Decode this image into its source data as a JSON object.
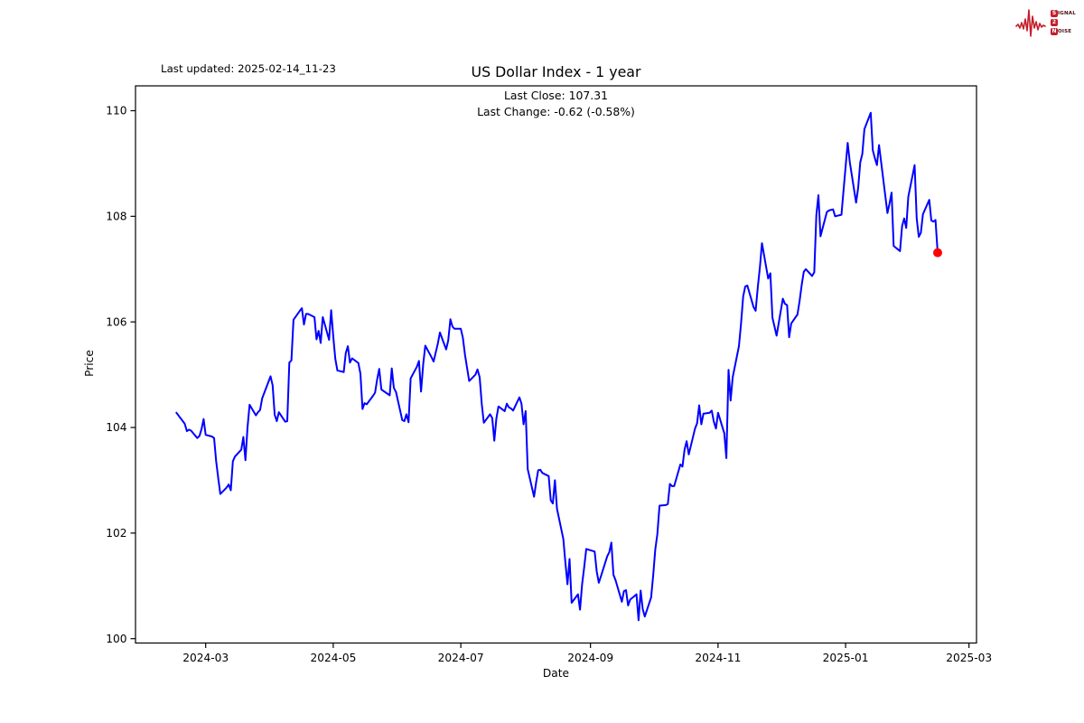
{
  "header": {
    "last_updated": "Last updated: 2025-02-14_11-23",
    "title": "US Dollar Index - 1 year",
    "subtitle_line1": "Last Close: 107.31",
    "subtitle_line2": "Last Change: -0.62 (-0.58%)"
  },
  "logo": {
    "word1_initial": "S",
    "word1_rest": "IGNAL",
    "word2_initial": "2",
    "word2_rest": "",
    "word3_initial": "N",
    "word3_rest": "OISE",
    "accent_color": "#c41f2b",
    "letter_color": "#4a0d10"
  },
  "chart_data": {
    "type": "line",
    "title": "US Dollar Index - 1 year",
    "xlabel": "Date",
    "ylabel": "Price",
    "last_close": 107.31,
    "last_change": "-0.62 (-0.58%)",
    "line_color": "#0000ff",
    "marker_color": "#ff0000",
    "axis_color": "#000000",
    "grid": false,
    "ylim": [
      99.87,
      110.44
    ],
    "y_ticks": [
      100,
      102,
      104,
      106,
      108,
      110
    ],
    "x_ticks": [
      {
        "date": "2024-03-01",
        "label": "2024-03"
      },
      {
        "date": "2024-05-01",
        "label": "2024-05"
      },
      {
        "date": "2024-07-01",
        "label": "2024-07"
      },
      {
        "date": "2024-09-01",
        "label": "2024-09"
      },
      {
        "date": "2024-11-01",
        "label": "2024-11"
      },
      {
        "date": "2025-01-01",
        "label": "2025-01"
      },
      {
        "date": "2025-03-01",
        "label": "2025-03"
      }
    ],
    "series": [
      {
        "name": "US Dollar Index",
        "points": [
          [
            "2024-02-16",
            104.28
          ],
          [
            "2024-02-20",
            104.07
          ],
          [
            "2024-02-21",
            103.93
          ],
          [
            "2024-02-22",
            103.96
          ],
          [
            "2024-02-23",
            103.94
          ],
          [
            "2024-02-26",
            103.8
          ],
          [
            "2024-02-27",
            103.84
          ],
          [
            "2024-02-28",
            103.97
          ],
          [
            "2024-02-29",
            104.16
          ],
          [
            "2024-03-01",
            103.86
          ],
          [
            "2024-03-04",
            103.83
          ],
          [
            "2024-03-05",
            103.8
          ],
          [
            "2024-03-06",
            103.36
          ],
          [
            "2024-03-07",
            103.04
          ],
          [
            "2024-03-08",
            102.74
          ],
          [
            "2024-03-11",
            102.86
          ],
          [
            "2024-03-12",
            102.92
          ],
          [
            "2024-03-13",
            102.81
          ],
          [
            "2024-03-14",
            103.36
          ],
          [
            "2024-03-15",
            103.45
          ],
          [
            "2024-03-18",
            103.58
          ],
          [
            "2024-03-19",
            103.82
          ],
          [
            "2024-03-20",
            103.38
          ],
          [
            "2024-03-21",
            104.0
          ],
          [
            "2024-03-22",
            104.43
          ],
          [
            "2024-03-25",
            104.23
          ],
          [
            "2024-03-26",
            104.29
          ],
          [
            "2024-03-27",
            104.33
          ],
          [
            "2024-03-28",
            104.55
          ],
          [
            "2024-04-01",
            104.97
          ],
          [
            "2024-04-02",
            104.8
          ],
          [
            "2024-04-03",
            104.24
          ],
          [
            "2024-04-04",
            104.12
          ],
          [
            "2024-04-05",
            104.29
          ],
          [
            "2024-04-08",
            104.11
          ],
          [
            "2024-04-09",
            104.12
          ],
          [
            "2024-04-10",
            105.23
          ],
          [
            "2024-04-11",
            105.27
          ],
          [
            "2024-04-12",
            106.04
          ],
          [
            "2024-04-15",
            106.21
          ],
          [
            "2024-04-16",
            106.26
          ],
          [
            "2024-04-17",
            105.95
          ],
          [
            "2024-04-18",
            106.15
          ],
          [
            "2024-04-19",
            106.15
          ],
          [
            "2024-04-22",
            106.09
          ],
          [
            "2024-04-23",
            105.67
          ],
          [
            "2024-04-24",
            105.83
          ],
          [
            "2024-04-25",
            105.6
          ],
          [
            "2024-04-26",
            106.09
          ],
          [
            "2024-04-29",
            105.66
          ],
          [
            "2024-04-30",
            106.22
          ],
          [
            "2024-05-01",
            105.73
          ],
          [
            "2024-05-02",
            105.3
          ],
          [
            "2024-05-03",
            105.08
          ],
          [
            "2024-05-06",
            105.05
          ],
          [
            "2024-05-07",
            105.41
          ],
          [
            "2024-05-08",
            105.54
          ],
          [
            "2024-05-09",
            105.23
          ],
          [
            "2024-05-10",
            105.31
          ],
          [
            "2024-05-13",
            105.22
          ],
          [
            "2024-05-14",
            105.02
          ],
          [
            "2024-05-15",
            104.35
          ],
          [
            "2024-05-16",
            104.46
          ],
          [
            "2024-05-17",
            104.44
          ],
          [
            "2024-05-20",
            104.6
          ],
          [
            "2024-05-21",
            104.66
          ],
          [
            "2024-05-22",
            104.91
          ],
          [
            "2024-05-23",
            105.11
          ],
          [
            "2024-05-24",
            104.72
          ],
          [
            "2024-05-28",
            104.61
          ],
          [
            "2024-05-29",
            105.12
          ],
          [
            "2024-05-30",
            104.75
          ],
          [
            "2024-05-31",
            104.67
          ],
          [
            "2024-06-03",
            104.14
          ],
          [
            "2024-06-04",
            104.12
          ],
          [
            "2024-06-05",
            104.25
          ],
          [
            "2024-06-06",
            104.1
          ],
          [
            "2024-06-07",
            104.93
          ],
          [
            "2024-06-10",
            105.15
          ],
          [
            "2024-06-11",
            105.26
          ],
          [
            "2024-06-12",
            104.68
          ],
          [
            "2024-06-13",
            105.2
          ],
          [
            "2024-06-14",
            105.55
          ],
          [
            "2024-06-17",
            105.33
          ],
          [
            "2024-06-18",
            105.25
          ],
          [
            "2024-06-20",
            105.59
          ],
          [
            "2024-06-21",
            105.8
          ],
          [
            "2024-06-24",
            105.48
          ],
          [
            "2024-06-25",
            105.65
          ],
          [
            "2024-06-26",
            106.05
          ],
          [
            "2024-06-27",
            105.91
          ],
          [
            "2024-06-28",
            105.87
          ],
          [
            "2024-07-01",
            105.87
          ],
          [
            "2024-07-02",
            105.7
          ],
          [
            "2024-07-03",
            105.37
          ],
          [
            "2024-07-05",
            104.88
          ],
          [
            "2024-07-08",
            105.0
          ],
          [
            "2024-07-09",
            105.1
          ],
          [
            "2024-07-10",
            104.95
          ],
          [
            "2024-07-11",
            104.45
          ],
          [
            "2024-07-12",
            104.09
          ],
          [
            "2024-07-15",
            104.25
          ],
          [
            "2024-07-16",
            104.18
          ],
          [
            "2024-07-17",
            103.75
          ],
          [
            "2024-07-18",
            104.17
          ],
          [
            "2024-07-19",
            104.4
          ],
          [
            "2024-07-22",
            104.31
          ],
          [
            "2024-07-23",
            104.45
          ],
          [
            "2024-07-24",
            104.38
          ],
          [
            "2024-07-25",
            104.36
          ],
          [
            "2024-07-26",
            104.32
          ],
          [
            "2024-07-29",
            104.57
          ],
          [
            "2024-07-30",
            104.45
          ],
          [
            "2024-07-31",
            104.06
          ],
          [
            "2024-08-01",
            104.31
          ],
          [
            "2024-08-02",
            103.21
          ],
          [
            "2024-08-05",
            102.69
          ],
          [
            "2024-08-06",
            102.96
          ],
          [
            "2024-08-07",
            103.19
          ],
          [
            "2024-08-08",
            103.2
          ],
          [
            "2024-08-09",
            103.14
          ],
          [
            "2024-08-12",
            103.08
          ],
          [
            "2024-08-13",
            102.62
          ],
          [
            "2024-08-14",
            102.56
          ],
          [
            "2024-08-15",
            103.0
          ],
          [
            "2024-08-16",
            102.46
          ],
          [
            "2024-08-19",
            101.89
          ],
          [
            "2024-08-20",
            101.44
          ],
          [
            "2024-08-21",
            101.03
          ],
          [
            "2024-08-22",
            101.51
          ],
          [
            "2024-08-23",
            100.68
          ],
          [
            "2024-08-26",
            100.84
          ],
          [
            "2024-08-27",
            100.55
          ],
          [
            "2024-08-28",
            101.03
          ],
          [
            "2024-08-29",
            101.35
          ],
          [
            "2024-08-30",
            101.7
          ],
          [
            "2024-09-03",
            101.65
          ],
          [
            "2024-09-04",
            101.27
          ],
          [
            "2024-09-05",
            101.06
          ],
          [
            "2024-09-06",
            101.18
          ],
          [
            "2024-09-09",
            101.56
          ],
          [
            "2024-09-10",
            101.64
          ],
          [
            "2024-09-11",
            101.82
          ],
          [
            "2024-09-12",
            101.21
          ],
          [
            "2024-09-13",
            101.11
          ],
          [
            "2024-09-16",
            100.7
          ],
          [
            "2024-09-17",
            100.9
          ],
          [
            "2024-09-18",
            100.92
          ],
          [
            "2024-09-19",
            100.63
          ],
          [
            "2024-09-20",
            100.74
          ],
          [
            "2024-09-23",
            100.84
          ],
          [
            "2024-09-24",
            100.35
          ],
          [
            "2024-09-25",
            100.91
          ],
          [
            "2024-09-26",
            100.56
          ],
          [
            "2024-09-27",
            100.42
          ],
          [
            "2024-09-30",
            100.78
          ],
          [
            "2024-10-01",
            101.2
          ],
          [
            "2024-10-02",
            101.69
          ],
          [
            "2024-10-03",
            101.98
          ],
          [
            "2024-10-04",
            102.52
          ],
          [
            "2024-10-07",
            102.53
          ],
          [
            "2024-10-08",
            102.55
          ],
          [
            "2024-10-09",
            102.93
          ],
          [
            "2024-10-10",
            102.89
          ],
          [
            "2024-10-11",
            102.89
          ],
          [
            "2024-10-14",
            103.3
          ],
          [
            "2024-10-15",
            103.26
          ],
          [
            "2024-10-16",
            103.58
          ],
          [
            "2024-10-17",
            103.74
          ],
          [
            "2024-10-18",
            103.49
          ],
          [
            "2024-10-21",
            103.98
          ],
          [
            "2024-10-22",
            104.08
          ],
          [
            "2024-10-23",
            104.42
          ],
          [
            "2024-10-24",
            104.06
          ],
          [
            "2024-10-25",
            104.26
          ],
          [
            "2024-10-28",
            104.28
          ],
          [
            "2024-10-29",
            104.32
          ],
          [
            "2024-10-30",
            104.11
          ],
          [
            "2024-10-31",
            103.98
          ],
          [
            "2024-11-01",
            104.28
          ],
          [
            "2024-11-04",
            103.89
          ],
          [
            "2024-11-05",
            103.42
          ],
          [
            "2024-11-06",
            105.09
          ],
          [
            "2024-11-07",
            104.51
          ],
          [
            "2024-11-08",
            104.95
          ],
          [
            "2024-11-11",
            105.54
          ],
          [
            "2024-11-12",
            105.96
          ],
          [
            "2024-11-13",
            106.48
          ],
          [
            "2024-11-14",
            106.67
          ],
          [
            "2024-11-15",
            106.69
          ],
          [
            "2024-11-18",
            106.28
          ],
          [
            "2024-11-19",
            106.21
          ],
          [
            "2024-11-20",
            106.66
          ],
          [
            "2024-11-21",
            107.03
          ],
          [
            "2024-11-22",
            107.49
          ],
          [
            "2024-11-25",
            106.82
          ],
          [
            "2024-11-26",
            106.92
          ],
          [
            "2024-11-27",
            106.08
          ],
          [
            "2024-11-29",
            105.74
          ],
          [
            "2024-12-02",
            106.44
          ],
          [
            "2024-12-03",
            106.34
          ],
          [
            "2024-12-04",
            106.32
          ],
          [
            "2024-12-05",
            105.71
          ],
          [
            "2024-12-06",
            105.97
          ],
          [
            "2024-12-09",
            106.14
          ],
          [
            "2024-12-10",
            106.4
          ],
          [
            "2024-12-11",
            106.7
          ],
          [
            "2024-12-12",
            106.95
          ],
          [
            "2024-12-13",
            107.0
          ],
          [
            "2024-12-16",
            106.87
          ],
          [
            "2024-12-17",
            106.94
          ],
          [
            "2024-12-18",
            108.02
          ],
          [
            "2024-12-19",
            108.4
          ],
          [
            "2024-12-20",
            107.62
          ],
          [
            "2024-12-23",
            108.08
          ],
          [
            "2024-12-24",
            108.11
          ],
          [
            "2024-12-26",
            108.13
          ],
          [
            "2024-12-27",
            108.0
          ],
          [
            "2024-12-30",
            108.03
          ],
          [
            "2024-12-31",
            108.49
          ],
          [
            "2025-01-02",
            109.39
          ],
          [
            "2025-01-03",
            109.03
          ],
          [
            "2025-01-06",
            108.26
          ],
          [
            "2025-01-07",
            108.54
          ],
          [
            "2025-01-08",
            109.02
          ],
          [
            "2025-01-09",
            109.18
          ],
          [
            "2025-01-10",
            109.65
          ],
          [
            "2025-01-13",
            109.96
          ],
          [
            "2025-01-14",
            109.25
          ],
          [
            "2025-01-15",
            109.1
          ],
          [
            "2025-01-16",
            108.97
          ],
          [
            "2025-01-17",
            109.35
          ],
          [
            "2025-01-21",
            108.06
          ],
          [
            "2025-01-22",
            108.24
          ],
          [
            "2025-01-23",
            108.45
          ],
          [
            "2025-01-24",
            107.44
          ],
          [
            "2025-01-27",
            107.34
          ],
          [
            "2025-01-28",
            107.81
          ],
          [
            "2025-01-29",
            107.96
          ],
          [
            "2025-01-30",
            107.78
          ],
          [
            "2025-01-31",
            108.37
          ],
          [
            "2025-02-03",
            108.97
          ],
          [
            "2025-02-04",
            107.96
          ],
          [
            "2025-02-05",
            107.61
          ],
          [
            "2025-02-06",
            107.69
          ],
          [
            "2025-02-07",
            108.04
          ],
          [
            "2025-02-10",
            108.31
          ],
          [
            "2025-02-11",
            107.92
          ],
          [
            "2025-02-12",
            107.9
          ],
          [
            "2025-02-13",
            107.93
          ],
          [
            "2025-02-14",
            107.31
          ]
        ]
      }
    ]
  }
}
